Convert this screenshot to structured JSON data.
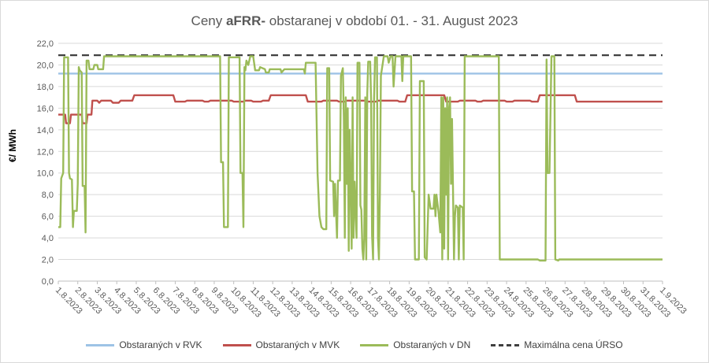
{
  "chart_data": {
    "type": "line",
    "title_prefix": "Ceny ",
    "title_bold": "aFRR-",
    "title_suffix": " obstaranej v období 01. - 31. August 2023",
    "ylabel": "€/ MWh",
    "ylim": [
      0,
      22
    ],
    "yticks": [
      "0,0",
      "2,0",
      "4,0",
      "6,0",
      "8,0",
      "10,0",
      "12,0",
      "14,0",
      "16,0",
      "18,0",
      "20,0",
      "22,0"
    ],
    "x_tick_labels": [
      "1.8.2023",
      "2.8.2023",
      "3.8.2023",
      "4.8.2023",
      "5.8.2023",
      "6.8.2023",
      "7.8.2023",
      "8.8.2023",
      "9.8.2023",
      "10.8.2023",
      "11.8.2023",
      "12.8.2023",
      "13.8.2023",
      "14.8.2023",
      "15.8.2023",
      "16.8.2023",
      "17.8.2023",
      "18.8.2023",
      "19.8.2023",
      "20.8.2023",
      "21.8.2023",
      "22.8.2023",
      "23.8.2023",
      "24.8.2023",
      "25.8.2023",
      "26.8.2023",
      "27.8.2023",
      "28.8.2023",
      "29.8.2023",
      "30.8.2023",
      "31.8.2023",
      "1.9.2023"
    ],
    "grid": true,
    "legend_position": "bottom",
    "series": [
      {
        "name": "Obstaraných v RVK",
        "color": "#9dc3e6",
        "dashed": false,
        "points": [
          [
            1,
            19.2
          ],
          [
            32,
            19.2
          ]
        ]
      },
      {
        "name": "Obstaraných v MVK",
        "color": "#c0504d",
        "dashed": false,
        "points": [
          [
            1,
            15.4
          ],
          [
            1.35,
            15.4
          ],
          [
            1.4,
            14.6
          ],
          [
            1.6,
            14.6
          ],
          [
            1.65,
            15.4
          ],
          [
            2.2,
            15.4
          ],
          [
            2.25,
            14.6
          ],
          [
            2.45,
            14.6
          ],
          [
            2.5,
            15.4
          ],
          [
            2.7,
            15.4
          ],
          [
            2.75,
            16.7
          ],
          [
            3.0,
            16.7
          ],
          [
            3.1,
            16.5
          ],
          [
            3.2,
            16.7
          ],
          [
            3.7,
            16.7
          ],
          [
            3.8,
            16.5
          ],
          [
            4.1,
            16.5
          ],
          [
            4.2,
            16.7
          ],
          [
            4.8,
            16.7
          ],
          [
            4.9,
            17.2
          ],
          [
            6.9,
            17.2
          ],
          [
            7.0,
            16.6
          ],
          [
            7.5,
            16.6
          ],
          [
            7.6,
            16.7
          ],
          [
            8.4,
            16.7
          ],
          [
            8.5,
            16.6
          ],
          [
            8.7,
            16.6
          ],
          [
            8.8,
            16.7
          ],
          [
            9.9,
            16.7
          ],
          [
            10.0,
            16.6
          ],
          [
            10.5,
            16.6
          ],
          [
            10.6,
            16.7
          ],
          [
            10.9,
            16.7
          ],
          [
            11.0,
            16.6
          ],
          [
            11.4,
            16.6
          ],
          [
            11.5,
            16.7
          ],
          [
            11.8,
            16.7
          ],
          [
            11.9,
            17.2
          ],
          [
            13.7,
            17.2
          ],
          [
            13.8,
            16.6
          ],
          [
            14.5,
            16.6
          ],
          [
            14.6,
            16.7
          ],
          [
            15.3,
            16.7
          ],
          [
            15.4,
            16.6
          ],
          [
            15.7,
            16.6
          ],
          [
            15.8,
            16.7
          ],
          [
            16.8,
            16.7
          ],
          [
            16.9,
            16.6
          ],
          [
            17.3,
            16.6
          ],
          [
            17.4,
            16.7
          ],
          [
            18.4,
            16.7
          ],
          [
            18.5,
            16.6
          ],
          [
            18.8,
            16.6
          ],
          [
            18.9,
            17.2
          ],
          [
            20.8,
            17.2
          ],
          [
            20.9,
            16.6
          ],
          [
            21.5,
            16.6
          ],
          [
            21.6,
            16.7
          ],
          [
            22.4,
            16.7
          ],
          [
            22.5,
            16.6
          ],
          [
            22.7,
            16.6
          ],
          [
            22.8,
            16.7
          ],
          [
            23.9,
            16.7
          ],
          [
            24.0,
            16.6
          ],
          [
            24.3,
            16.6
          ],
          [
            24.4,
            16.7
          ],
          [
            25.2,
            16.7
          ],
          [
            25.3,
            16.6
          ],
          [
            25.6,
            16.6
          ],
          [
            25.7,
            17.2
          ],
          [
            27.5,
            17.2
          ],
          [
            27.6,
            16.6
          ],
          [
            32,
            16.6
          ]
        ]
      },
      {
        "name": "Obstaraných v DN",
        "color": "#9bbb59",
        "dashed": false,
        "points": [
          [
            1,
            5.0
          ],
          [
            1.1,
            5.0
          ],
          [
            1.15,
            9.5
          ],
          [
            1.25,
            10
          ],
          [
            1.3,
            20.7
          ],
          [
            1.5,
            20.7
          ],
          [
            1.55,
            10
          ],
          [
            1.6,
            9.5
          ],
          [
            1.7,
            9.4
          ],
          [
            1.75,
            5
          ],
          [
            1.8,
            6.5
          ],
          [
            1.95,
            6.5
          ],
          [
            2.0,
            9
          ],
          [
            2.05,
            19.8
          ],
          [
            2.1,
            19.5
          ],
          [
            2.2,
            19.3
          ],
          [
            2.25,
            8.8
          ],
          [
            2.35,
            8.8
          ],
          [
            2.4,
            4.5
          ],
          [
            2.45,
            20.4
          ],
          [
            2.55,
            20.4
          ],
          [
            2.6,
            19.6
          ],
          [
            2.8,
            19.6
          ],
          [
            2.85,
            20.0
          ],
          [
            3.0,
            20.0
          ],
          [
            3.05,
            19.6
          ],
          [
            3.3,
            19.6
          ],
          [
            3.35,
            20.8
          ],
          [
            9.3,
            20.8
          ],
          [
            9.35,
            11
          ],
          [
            9.45,
            11
          ],
          [
            9.5,
            5
          ],
          [
            9.7,
            5
          ],
          [
            9.75,
            20.7
          ],
          [
            10.3,
            20.7
          ],
          [
            10.35,
            10
          ],
          [
            10.45,
            10
          ],
          [
            10.5,
            5
          ],
          [
            10.55,
            19.8
          ],
          [
            10.6,
            19.5
          ],
          [
            10.65,
            20.4
          ],
          [
            10.75,
            20
          ],
          [
            10.85,
            20.8
          ],
          [
            11.0,
            20.8
          ],
          [
            11.1,
            19.5
          ],
          [
            11.3,
            19.5
          ],
          [
            11.35,
            19.8
          ],
          [
            11.6,
            19.6
          ],
          [
            11.65,
            19.3
          ],
          [
            11.8,
            19.3
          ],
          [
            11.85,
            19.6
          ],
          [
            12.4,
            19.6
          ],
          [
            12.45,
            19.3
          ],
          [
            12.6,
            19.6
          ],
          [
            13.6,
            19.6
          ],
          [
            13.65,
            19.2
          ],
          [
            13.7,
            20.2
          ],
          [
            14.2,
            20.2
          ],
          [
            14.3,
            10
          ],
          [
            14.4,
            6
          ],
          [
            14.5,
            5
          ],
          [
            14.6,
            4.8
          ],
          [
            14.75,
            4.8
          ],
          [
            14.8,
            19.7
          ],
          [
            14.9,
            19.7
          ],
          [
            14.95,
            9.3
          ],
          [
            15.1,
            9.2
          ],
          [
            15.15,
            6
          ],
          [
            15.2,
            9
          ],
          [
            15.3,
            4
          ],
          [
            15.35,
            9.3
          ],
          [
            15.45,
            9.3
          ],
          [
            15.5,
            19
          ],
          [
            15.6,
            19.7
          ],
          [
            15.65,
            15
          ],
          [
            15.7,
            4
          ],
          [
            15.75,
            17
          ],
          [
            15.8,
            9
          ],
          [
            15.85,
            16
          ],
          [
            15.9,
            2.8
          ],
          [
            15.95,
            14
          ],
          [
            16.0,
            9.2
          ],
          [
            16.05,
            3
          ],
          [
            16.1,
            17
          ],
          [
            16.15,
            4
          ],
          [
            16.2,
            9.2
          ],
          [
            16.3,
            4
          ],
          [
            16.35,
            20.2
          ],
          [
            16.45,
            20.2
          ],
          [
            16.5,
            7
          ],
          [
            16.55,
            6.6
          ],
          [
            16.6,
            3
          ],
          [
            16.65,
            2
          ],
          [
            16.7,
            4
          ],
          [
            16.75,
            17
          ],
          [
            16.8,
            2
          ],
          [
            16.85,
            17.3
          ],
          [
            16.9,
            20.3
          ],
          [
            17.0,
            20.3
          ],
          [
            17.05,
            16.7
          ],
          [
            17.1,
            4.2
          ],
          [
            17.15,
            2
          ],
          [
            17.2,
            16.8
          ],
          [
            17.25,
            20.7
          ],
          [
            17.35,
            20.7
          ],
          [
            17.4,
            4
          ],
          [
            17.45,
            2
          ],
          [
            17.5,
            8
          ],
          [
            17.55,
            19
          ],
          [
            17.65,
            20.2
          ],
          [
            17.7,
            20.8
          ],
          [
            17.9,
            20.8
          ],
          [
            17.95,
            20.2
          ],
          [
            18.05,
            20.8
          ],
          [
            18.15,
            20.8
          ],
          [
            18.2,
            18
          ],
          [
            18.3,
            20.8
          ],
          [
            18.6,
            20.8
          ],
          [
            18.65,
            18.5
          ],
          [
            18.7,
            20.8
          ],
          [
            19.1,
            20.8
          ],
          [
            19.15,
            8.3
          ],
          [
            19.25,
            8.3
          ],
          [
            19.3,
            2
          ],
          [
            19.5,
            2
          ],
          [
            19.55,
            18.5
          ],
          [
            19.75,
            18.5
          ],
          [
            19.8,
            2.2
          ],
          [
            19.9,
            2
          ],
          [
            20.0,
            8
          ],
          [
            20.1,
            6.7
          ],
          [
            20.25,
            6.7
          ],
          [
            20.3,
            8
          ],
          [
            20.35,
            6
          ],
          [
            20.4,
            8
          ],
          [
            20.5,
            6.5
          ],
          [
            20.6,
            4.5
          ],
          [
            20.65,
            17
          ],
          [
            20.7,
            2
          ],
          [
            20.75,
            17
          ],
          [
            20.8,
            3
          ],
          [
            20.85,
            16
          ],
          [
            20.9,
            8
          ],
          [
            20.95,
            17
          ],
          [
            21.0,
            2
          ],
          [
            21.05,
            16
          ],
          [
            21.1,
            17
          ],
          [
            21.15,
            9
          ],
          [
            21.2,
            15
          ],
          [
            21.3,
            2
          ],
          [
            21.35,
            6
          ],
          [
            21.4,
            7
          ],
          [
            21.5,
            6.8
          ],
          [
            21.55,
            2
          ],
          [
            21.6,
            7
          ],
          [
            21.75,
            6.8
          ],
          [
            21.8,
            2
          ],
          [
            21.85,
            20.8
          ],
          [
            23.6,
            20.8
          ],
          [
            23.65,
            2
          ],
          [
            25.6,
            2
          ],
          [
            25.7,
            1.9
          ],
          [
            26.0,
            1.9
          ],
          [
            26.05,
            20.5
          ],
          [
            26.1,
            10
          ],
          [
            26.2,
            10
          ],
          [
            26.3,
            20.8
          ],
          [
            26.45,
            20.8
          ],
          [
            26.5,
            2
          ],
          [
            26.65,
            1.9
          ],
          [
            26.7,
            2
          ],
          [
            32,
            2
          ]
        ]
      },
      {
        "name": "Maximálna cena ÚRSO",
        "color": "#404040",
        "dashed": true,
        "points": [
          [
            1,
            20.9
          ],
          [
            32,
            20.9
          ]
        ]
      }
    ]
  }
}
